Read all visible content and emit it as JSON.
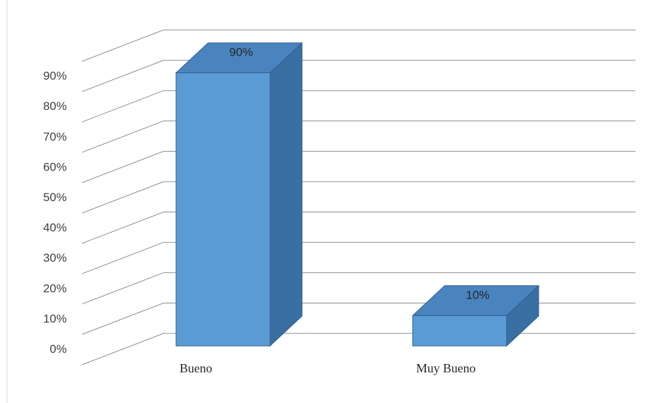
{
  "chart_data": {
    "type": "bar",
    "style": "3d-column",
    "categories": [
      "Bueno",
      "Muy Bueno"
    ],
    "values": [
      90,
      10
    ],
    "data_labels": [
      "90%",
      "10%"
    ],
    "yticks": [
      "0%",
      "10%",
      "20%",
      "30%",
      "40%",
      "50%",
      "60%",
      "70%",
      "80%",
      "90%"
    ],
    "ylim": [
      0,
      100
    ],
    "grid": true,
    "legend": "none",
    "colors": {
      "front": "#5b9bd5",
      "side": "#3a6fa3",
      "top": "#4a84bf",
      "edge": "#2e5f8f",
      "grid": "#8c8c8c",
      "frame": "#d9d9d9"
    }
  }
}
